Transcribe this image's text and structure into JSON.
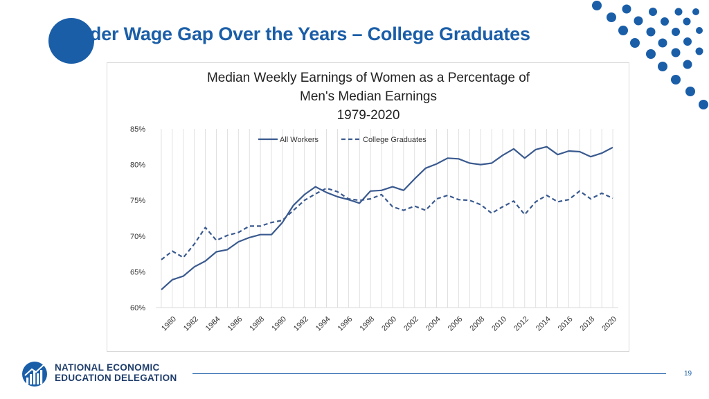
{
  "slide": {
    "title": "Gender Wage Gap Over the Years – College Graduates",
    "page_number": "19"
  },
  "logo": {
    "line1": "NATIONAL ECONOMIC",
    "line2": "EDUCATION DELEGATION"
  },
  "colors": {
    "accent": "#1a5ea8",
    "series": "#3a5a8f",
    "grid": "#d9d9d9"
  },
  "chart_data": {
    "type": "line",
    "title": [
      "Median Weekly Earnings of Women as a Percentage of",
      "Men's Median Earnings",
      "1979-2020"
    ],
    "xlabel": "",
    "ylabel": "",
    "ylim": [
      60,
      85
    ],
    "yticks": [
      60,
      65,
      70,
      75,
      80,
      85
    ],
    "ytick_labels": [
      "60%",
      "65%",
      "70%",
      "75%",
      "80%",
      "85%"
    ],
    "x": [
      1979,
      1980,
      1981,
      1982,
      1983,
      1984,
      1985,
      1986,
      1987,
      1988,
      1989,
      1990,
      1991,
      1992,
      1993,
      1994,
      1995,
      1996,
      1997,
      1998,
      1999,
      2000,
      2001,
      2002,
      2003,
      2004,
      2005,
      2006,
      2007,
      2008,
      2009,
      2010,
      2011,
      2012,
      2013,
      2014,
      2015,
      2016,
      2017,
      2018,
      2019,
      2020
    ],
    "xtick_labels": [
      "1980",
      "1982",
      "1984",
      "1986",
      "1988",
      "1990",
      "1992",
      "1994",
      "1996",
      "1998",
      "2000",
      "2002",
      "2004",
      "2006",
      "2008",
      "2010",
      "2012",
      "2014",
      "2016",
      "2018",
      "2020"
    ],
    "legend_position": "top-center",
    "series": [
      {
        "name": "All Workers",
        "style": "solid",
        "values": [
          62.5,
          63.9,
          64.4,
          65.7,
          66.5,
          67.8,
          68.1,
          69.2,
          69.8,
          70.2,
          70.2,
          71.9,
          74.3,
          75.8,
          76.9,
          76.1,
          75.5,
          75.1,
          74.6,
          76.3,
          76.4,
          76.9,
          76.4,
          78.0,
          79.5,
          80.1,
          80.9,
          80.8,
          80.2,
          80.0,
          80.2,
          81.3,
          82.2,
          80.9,
          82.1,
          82.5,
          81.4,
          81.9,
          81.8,
          81.1,
          81.6,
          82.4
        ]
      },
      {
        "name": "College Graduates",
        "style": "dashed",
        "values": [
          66.7,
          67.9,
          67.0,
          68.9,
          71.2,
          69.4,
          70.1,
          70.5,
          71.4,
          71.4,
          71.9,
          72.2,
          73.6,
          75.0,
          75.9,
          76.7,
          76.2,
          75.2,
          75.0,
          75.2,
          75.8,
          74.1,
          73.6,
          74.2,
          73.6,
          75.2,
          75.7,
          75.1,
          75.0,
          74.4,
          73.2,
          74.1,
          74.9,
          73.0,
          74.8,
          75.7,
          74.8,
          75.1,
          76.3,
          75.2,
          76.0,
          75.3
        ]
      }
    ]
  }
}
